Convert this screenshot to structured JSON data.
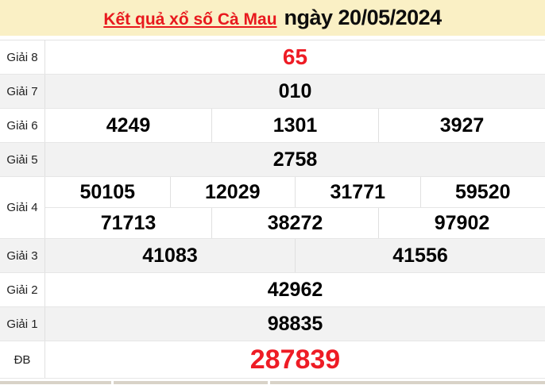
{
  "header": {
    "title_link": "Kết quả xổ số Cà Mau",
    "title_date": "ngày 20/05/2024"
  },
  "colors": {
    "header_bg": "#FAF0C5",
    "alt_row_bg": "#F2F2F2",
    "highlight_red": "#EE1C25",
    "title_link_red": "#E8191E",
    "border": "#E0E0E0",
    "next_table_edge": "#D8D2C7"
  },
  "table": {
    "rows": [
      {
        "label": "Giải 8",
        "values": [
          "65"
        ]
      },
      {
        "label": "Giải 7",
        "values": [
          "010"
        ]
      },
      {
        "label": "Giải 6",
        "values": [
          "4249",
          "1301",
          "3927"
        ]
      },
      {
        "label": "Giải 5",
        "values": [
          "2758"
        ]
      },
      {
        "label": "Giải 4",
        "line1": [
          "50105",
          "12029",
          "31771",
          "59520"
        ],
        "line2": [
          "71713",
          "38272",
          "97902"
        ]
      },
      {
        "label": "Giải 3",
        "values": [
          "41083",
          "41556"
        ]
      },
      {
        "label": "Giải 2",
        "values": [
          "42962"
        ]
      },
      {
        "label": "Giải 1",
        "values": [
          "98835"
        ]
      },
      {
        "label": "ĐB",
        "values": [
          "287839"
        ]
      }
    ]
  }
}
